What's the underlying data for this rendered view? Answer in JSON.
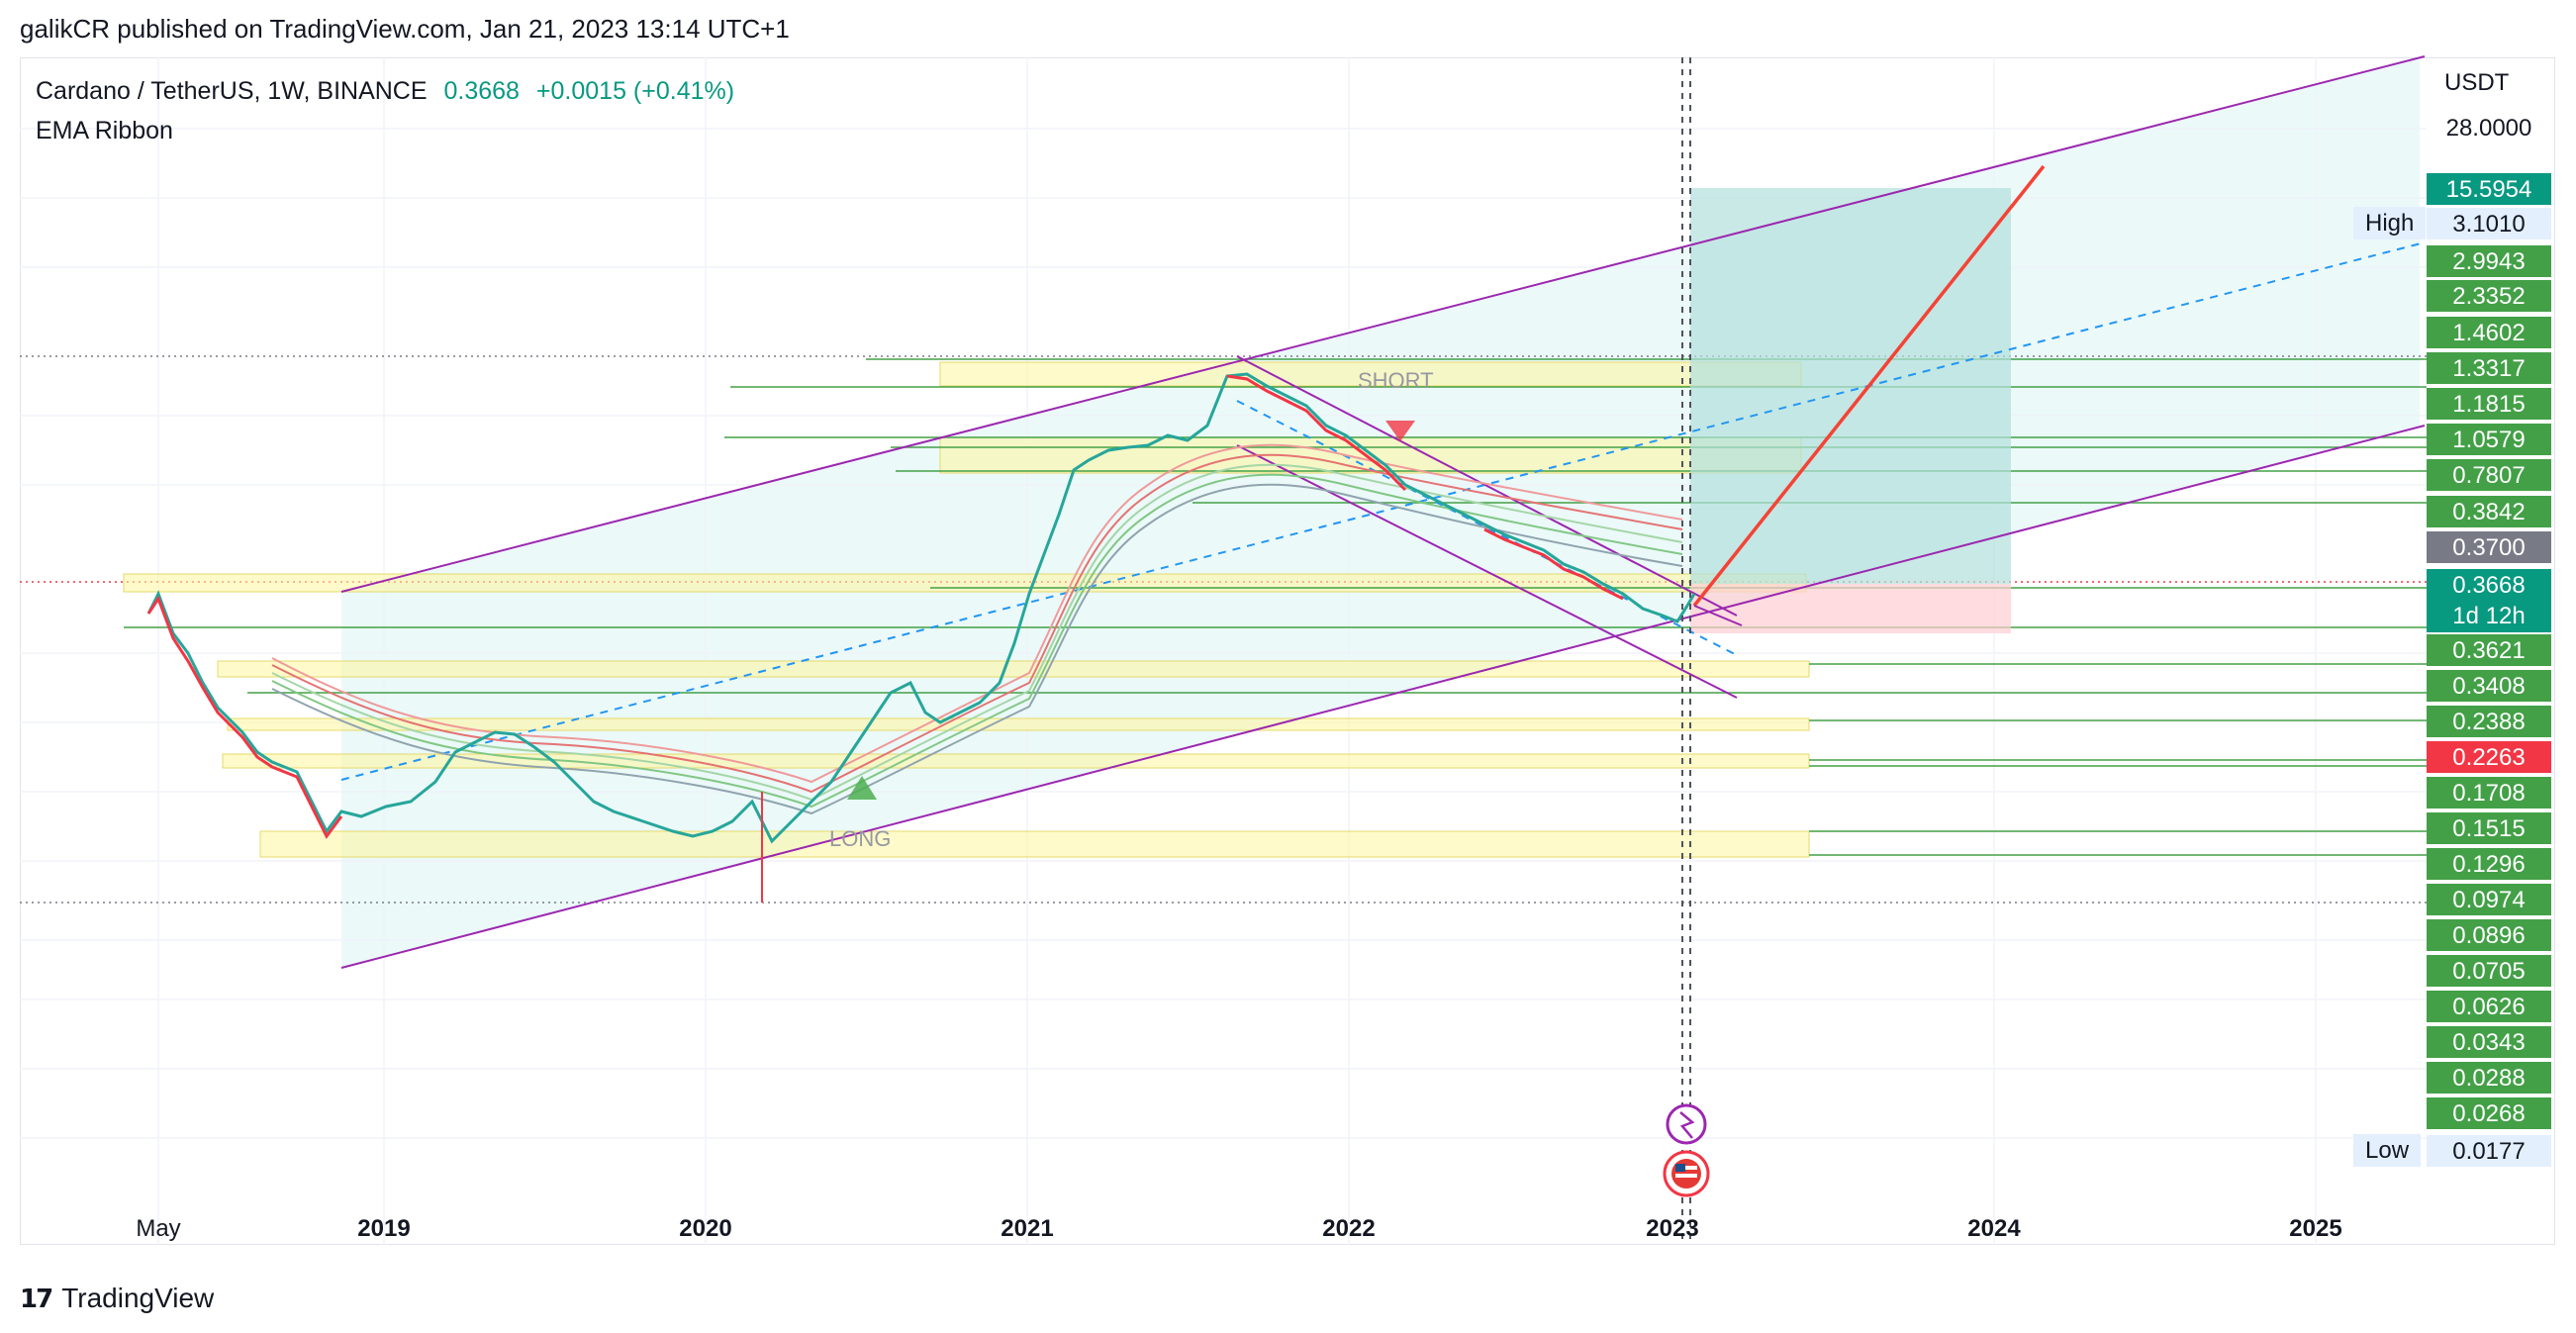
{
  "attribution": "galikCR published on TradingView.com, Jan 21, 2023 13:14 UTC+1",
  "legend": {
    "symbol": "Cardano / TetherUS, 1W, BINANCE",
    "price": "0.3668",
    "change": "+0.0015 (+0.41%)",
    "indicator": "EMA Ribbon"
  },
  "price_scale": {
    "currency": "USDT",
    "top_value": "28.0000",
    "levels": [
      {
        "value": "15.5954",
        "style": "teal"
      },
      {
        "value": "3.1010",
        "style": "light"
      },
      {
        "value": "2.9943",
        "style": "green"
      },
      {
        "value": "2.3352",
        "style": "green"
      },
      {
        "value": "1.4602",
        "style": "green"
      },
      {
        "value": "1.3317",
        "style": "green"
      },
      {
        "value": "1.1815",
        "style": "green"
      },
      {
        "value": "1.0579",
        "style": "green"
      },
      {
        "value": "0.7807",
        "style": "green"
      },
      {
        "value": "0.3842",
        "style": "green"
      },
      {
        "value": "0.3700",
        "style": "gray"
      },
      {
        "value": "0.3668",
        "style": "teal"
      },
      {
        "value": "0.3621",
        "style": "green"
      },
      {
        "value": "0.3408",
        "style": "green"
      },
      {
        "value": "0.2388",
        "style": "green"
      },
      {
        "value": "0.2263",
        "style": "red"
      },
      {
        "value": "0.1708",
        "style": "green"
      },
      {
        "value": "0.1515",
        "style": "green"
      },
      {
        "value": "0.1296",
        "style": "green"
      },
      {
        "value": "0.0974",
        "style": "green"
      },
      {
        "value": "0.0896",
        "style": "green"
      },
      {
        "value": "0.0705",
        "style": "green"
      },
      {
        "value": "0.0626",
        "style": "green"
      },
      {
        "value": "0.0343",
        "style": "green"
      },
      {
        "value": "0.0288",
        "style": "green"
      },
      {
        "value": "0.0268",
        "style": "green"
      },
      {
        "value": "0.0177",
        "style": "light"
      }
    ],
    "high_label": "High",
    "low_label": "Low",
    "countdown": "1d 12h"
  },
  "time_axis": [
    "May",
    "2019",
    "2020",
    "2021",
    "2022",
    "2023",
    "2024",
    "2025"
  ],
  "zones": {
    "short_label": "SHORT",
    "long_label": "LONG"
  },
  "colors": {
    "up": "#089981",
    "down": "#f23645",
    "channel": "#9c27b0",
    "target_arrow": "#f44336",
    "hline": "#43a047",
    "zone_fill": "#fff59d"
  },
  "footer": {
    "brand": "TradingView",
    "logo_icon": "tradingview-logo-icon"
  }
}
